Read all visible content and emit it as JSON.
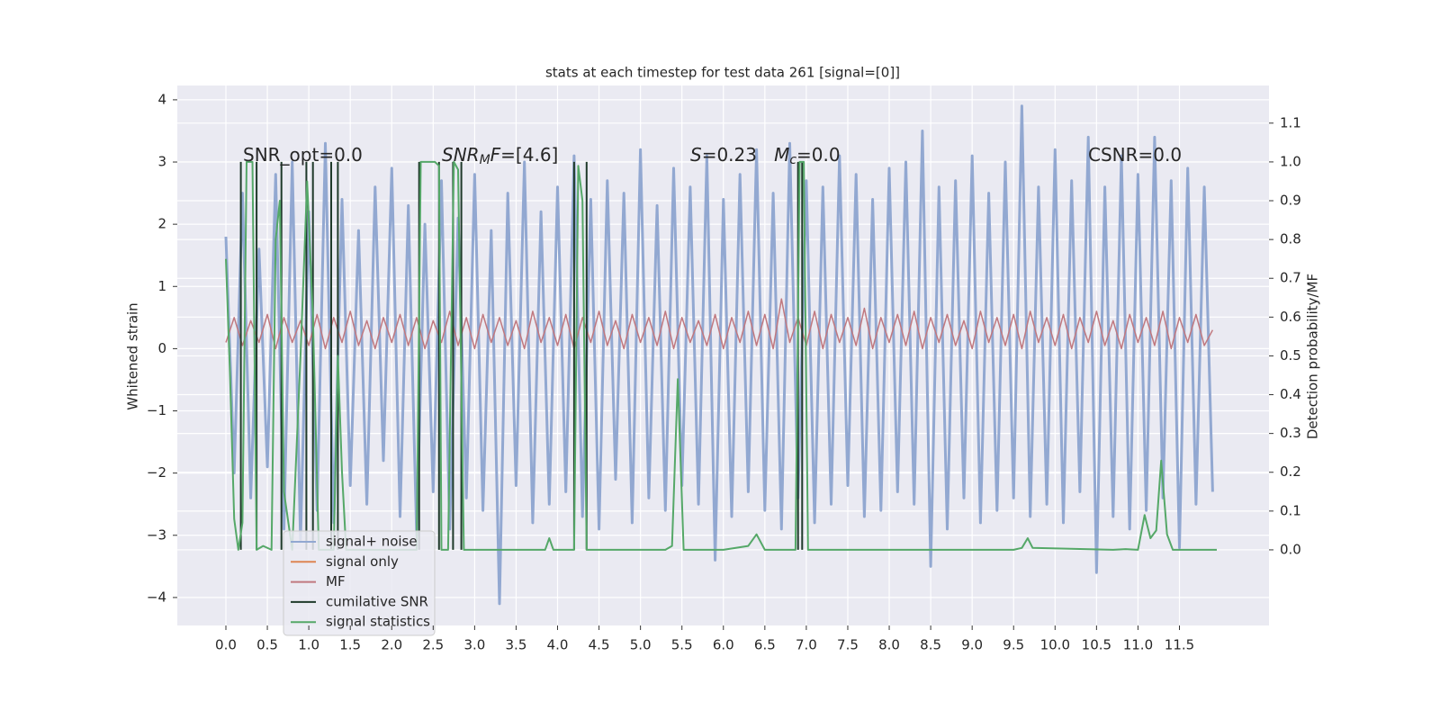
{
  "chart_data": {
    "type": "line",
    "title": "stats at each timestep for test data 261 [signal=[0]]",
    "ylabel": "Whitened strain",
    "y2label": "Detection probability/MF",
    "xlim": [
      -0.586,
      12.58
    ],
    "ylim": [
      -4.45,
      4.23
    ],
    "y2lim": [
      -0.195,
      1.197
    ],
    "grid": true,
    "legend": "lower left",
    "xticks": [
      {
        "value": 0,
        "label": "0.0"
      },
      {
        "value": 0.5,
        "label": "0.5"
      },
      {
        "value": 1,
        "label": "1.0"
      },
      {
        "value": 1.5,
        "label": "1.5"
      },
      {
        "value": 2,
        "label": "2.0"
      },
      {
        "value": 2.5,
        "label": "2.5"
      },
      {
        "value": 3,
        "label": "3.0"
      },
      {
        "value": 3.5,
        "label": "3.5"
      },
      {
        "value": 4,
        "label": "4.0"
      },
      {
        "value": 4.5,
        "label": "4.5"
      },
      {
        "value": 5,
        "label": "5.0"
      },
      {
        "value": 5.5,
        "label": "5.5"
      },
      {
        "value": 6,
        "label": "6.0"
      },
      {
        "value": 6.5,
        "label": "6.5"
      },
      {
        "value": 7,
        "label": "7.0"
      },
      {
        "value": 7.5,
        "label": "7.5"
      },
      {
        "value": 8,
        "label": "8.0"
      },
      {
        "value": 8.5,
        "label": "8.5"
      },
      {
        "value": 9,
        "label": "9.0"
      },
      {
        "value": 9.5,
        "label": "9.5"
      },
      {
        "value": 10,
        "label": "10.0"
      },
      {
        "value": 10.5,
        "label": "10.5"
      },
      {
        "value": 11,
        "label": "11.0"
      },
      {
        "value": 11.5,
        "label": "11.5"
      }
    ],
    "yticks": [
      {
        "value": -4,
        "label": "−4"
      },
      {
        "value": -3,
        "label": "−3"
      },
      {
        "value": -2,
        "label": "−2"
      },
      {
        "value": -1,
        "label": "−1"
      },
      0,
      1,
      2,
      3,
      4
    ],
    "y2ticks": [
      {
        "value": 0,
        "label": "0.0"
      },
      {
        "value": 0.1,
        "label": "0.1"
      },
      {
        "value": 0.2,
        "label": "0.2"
      },
      {
        "value": 0.3,
        "label": "0.3"
      },
      {
        "value": 0.4,
        "label": "0.4"
      },
      {
        "value": 0.5,
        "label": "0.5"
      },
      {
        "value": 0.6,
        "label": "0.6"
      },
      {
        "value": 0.7,
        "label": "0.7"
      },
      {
        "value": 0.8,
        "label": "0.8"
      },
      {
        "value": 0.9,
        "label": "0.9"
      },
      {
        "value": 1,
        "label": "1.0"
      },
      {
        "value": 1.1,
        "label": "1.1"
      }
    ],
    "annotations": [
      [
        {
          "t": "SNR_opt=0.0",
          "style": "normal"
        }
      ],
      [
        {
          "t": "SNR",
          "style": "italic"
        },
        {
          "t": "M",
          "style": "sub"
        },
        {
          "t": "F",
          "style": "italic"
        },
        {
          "t": "=[4.6]",
          "style": "normal"
        }
      ],
      [
        {
          "t": "S",
          "style": "italic"
        },
        {
          "t": "=0.23   ",
          "style": "normal"
        },
        {
          "t": "M",
          "style": "italic"
        },
        {
          "t": "c",
          "style": "sub"
        },
        {
          "t": "=0.0",
          "style": "normal"
        }
      ],
      [
        {
          "t": "CSNR=0.0",
          "style": "normal"
        }
      ]
    ],
    "x": [
      0,
      0.1,
      0.2,
      0.3,
      0.4,
      0.5,
      0.6,
      0.7,
      0.8,
      0.9,
      1,
      1.1,
      1.2,
      1.3,
      1.4,
      1.5,
      1.6,
      1.7,
      1.8,
      1.9,
      2,
      2.1,
      2.2,
      2.3,
      2.4,
      2.5,
      2.6,
      2.7,
      2.8,
      2.9,
      3,
      3.1,
      3.2,
      3.3,
      3.4,
      3.5,
      3.6,
      3.7,
      3.8,
      3.9,
      4,
      4.1,
      4.2,
      4.3,
      4.4,
      4.5,
      4.6,
      4.7,
      4.8,
      4.9,
      5,
      5.1,
      5.2,
      5.3,
      5.4,
      5.5,
      5.6,
      5.7,
      5.8,
      5.9,
      6,
      6.1,
      6.2,
      6.3,
      6.4,
      6.5,
      6.6,
      6.7,
      6.8,
      6.9,
      7,
      7.1,
      7.2,
      7.3,
      7.4,
      7.5,
      7.6,
      7.7,
      7.8,
      7.9,
      8,
      8.1,
      8.2,
      8.3,
      8.4,
      8.5,
      8.6,
      8.7,
      8.8,
      8.9,
      9,
      9.1,
      9.2,
      9.3,
      9.4,
      9.5,
      9.6,
      9.7,
      9.8,
      9.9,
      10,
      10.1,
      10.2,
      10.3,
      10.4,
      10.5,
      10.6,
      10.7,
      10.8,
      10.9,
      11,
      11.1,
      11.2,
      11.3,
      11.4,
      11.5,
      11.6,
      11.7,
      11.8,
      11.9
    ],
    "series": [
      {
        "name": "signal+ noise",
        "color": "#92a8d1",
        "values": [
          1.8,
          -2.0,
          2.5,
          -2.4,
          1.6,
          -1.9,
          2.8,
          -2.9,
          3.0,
          -3.1,
          2.2,
          -2.6,
          3.3,
          -2.8,
          2.4,
          -2.2,
          1.9,
          -2.5,
          2.6,
          -1.8,
          2.9,
          -2.7,
          2.3,
          -3.0,
          2.0,
          -2.3,
          2.7,
          -2.9,
          2.1,
          -2.4,
          2.8,
          -2.6,
          1.9,
          -4.1,
          2.5,
          -2.2,
          3.0,
          -2.8,
          2.2,
          -2.5,
          2.6,
          -2.3,
          3.1,
          -2.7,
          2.4,
          -2.9,
          2.7,
          -2.1,
          2.5,
          -2.8,
          3.2,
          -2.4,
          2.3,
          -2.6,
          2.9,
          -2.2,
          2.6,
          -2.5,
          3.1,
          -3.4,
          2.4,
          -2.7,
          2.8,
          -2.3,
          3.2,
          -2.6,
          2.5,
          -2.9,
          3.3,
          -2.4,
          2.7,
          -2.8,
          2.6,
          -2.5,
          3.1,
          -2.2,
          2.8,
          -2.7,
          2.4,
          -2.6,
          2.9,
          -2.3,
          3.0,
          -2.5,
          3.5,
          -3.5,
          2.6,
          -2.9,
          2.7,
          -2.4,
          3.1,
          -2.8,
          2.5,
          -2.6,
          3.0,
          -2.4,
          3.9,
          -2.7,
          2.6,
          -2.5,
          3.2,
          -2.8,
          2.7,
          -2.3,
          3.4,
          -3.6,
          2.6,
          -2.7,
          3.1,
          -2.9,
          2.8,
          -2.6,
          3.4,
          -2.4,
          2.7,
          -3.2,
          2.9,
          -2.5,
          2.6,
          -2.3
        ]
      },
      {
        "name": "signal only",
        "color": "#dd8452"
      },
      {
        "name": "MF",
        "color": "#c0787f",
        "values": [
          0.1,
          0.5,
          0.05,
          0.45,
          0.1,
          0.55,
          0.0,
          0.5,
          0.1,
          0.45,
          0.05,
          0.55,
          0.0,
          0.5,
          0.1,
          0.6,
          0.05,
          0.45,
          0.0,
          0.5,
          0.1,
          0.55,
          0.05,
          0.5,
          0.0,
          0.45,
          0.1,
          0.6,
          0.05,
          0.5,
          0.0,
          0.55,
          0.1,
          0.5,
          0.05,
          0.45,
          0.0,
          0.6,
          0.1,
          0.5,
          0.05,
          0.55,
          0.0,
          0.5,
          0.1,
          0.6,
          0.05,
          0.45,
          0.0,
          0.55,
          0.1,
          0.5,
          0.05,
          0.6,
          0.0,
          0.5,
          0.1,
          0.45,
          0.05,
          0.55,
          0.0,
          0.5,
          0.1,
          0.6,
          0.05,
          0.55,
          0.0,
          0.8,
          0.1,
          0.5,
          0.05,
          0.6,
          0.0,
          0.55,
          0.1,
          0.5,
          0.05,
          0.65,
          0.0,
          0.5,
          0.1,
          0.55,
          0.05,
          0.6,
          0.0,
          0.5,
          0.1,
          0.55,
          0.05,
          0.45,
          0.0,
          0.6,
          0.1,
          0.5,
          0.05,
          0.55,
          0.0,
          0.6,
          0.1,
          0.5,
          0.05,
          0.55,
          0.0,
          0.5,
          0.1,
          0.6,
          0.05,
          0.45,
          0.0,
          0.55,
          0.1,
          0.5,
          0.05,
          0.6,
          0.0,
          0.5,
          0.1,
          0.55,
          0.05,
          0.3
        ]
      },
      {
        "name": "cumilative SNR",
        "color": "#1f3a2a",
        "axis": "y2",
        "x": [
          0.18,
          0.18,
          null,
          0.37,
          0.37,
          null,
          0.67,
          0.67,
          null,
          0.97,
          0.97,
          null,
          1.05,
          1.05,
          null,
          1.27,
          1.27,
          null,
          1.35,
          1.35,
          null,
          2.33,
          2.33,
          null,
          2.57,
          2.57,
          null,
          2.74,
          2.74,
          null,
          2.84,
          2.84,
          null,
          4.2,
          4.2,
          null,
          4.35,
          4.35,
          null,
          6.9,
          6.9,
          null,
          6.95,
          6.95
        ],
        "values": [
          0,
          1,
          null,
          0,
          1,
          null,
          0,
          1,
          null,
          0,
          1,
          null,
          0,
          1,
          null,
          0,
          1,
          null,
          0,
          1,
          null,
          0,
          1,
          null,
          0,
          1,
          null,
          0,
          1,
          null,
          0,
          1,
          null,
          0,
          1,
          null,
          0,
          1,
          null,
          0,
          1,
          null,
          0,
          1
        ]
      },
      {
        "name": "signal statistics",
        "color": "#55a868",
        "axis": "y2",
        "x": [
          0,
          0.05,
          0.1,
          0.15,
          0.2,
          0.25,
          0.32,
          0.37,
          0.45,
          0.55,
          0.6,
          0.65,
          0.7,
          0.8,
          0.9,
          0.98,
          1.05,
          1.12,
          1.3,
          1.35,
          1.4,
          1.45,
          2.3,
          2.35,
          2.52,
          2.57,
          2.6,
          2.68,
          2.75,
          2.8,
          2.87,
          3.85,
          3.9,
          3.95,
          4.2,
          4.25,
          4.3,
          4.35,
          5.3,
          5.38,
          5.45,
          5.52,
          6.0,
          6.3,
          6.4,
          6.5,
          6.87,
          6.92,
          6.97,
          7.02,
          9.5,
          9.6,
          9.67,
          9.73,
          10.7,
          10.85,
          11.0,
          11.08,
          11.15,
          11.22,
          11.28,
          11.35,
          11.42,
          11.95
        ],
        "values": [
          0.75,
          0.45,
          0.08,
          0.0,
          0.07,
          1.0,
          1.0,
          0.0,
          0.01,
          0.0,
          0.8,
          0.9,
          0.15,
          0.0,
          0.5,
          0.95,
          0.6,
          0.0,
          0.0,
          0.5,
          0.2,
          0.0,
          0.0,
          1.0,
          1.0,
          0.99,
          0.0,
          0.0,
          1.0,
          0.98,
          0.0,
          0.0,
          0.03,
          0.0,
          0.0,
          0.99,
          0.9,
          0.0,
          0.0,
          0.01,
          0.44,
          0.0,
          0.0,
          0.01,
          0.04,
          0.0,
          0.0,
          1.0,
          1.0,
          0.0,
          0.0,
          0.005,
          0.03,
          0.005,
          0.0,
          0.002,
          0.0,
          0.09,
          0.03,
          0.05,
          0.23,
          0.04,
          0.0,
          0.0
        ]
      }
    ]
  }
}
